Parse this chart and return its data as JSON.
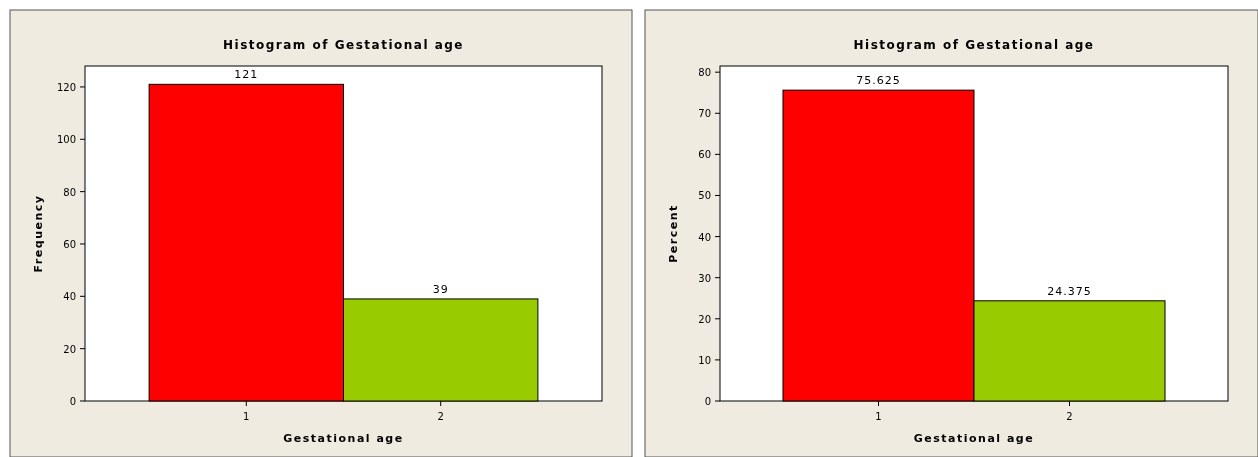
{
  "chart_data": [
    {
      "type": "bar",
      "title": "Histogram of Gestational age",
      "xlabel": "Gestational age",
      "ylabel": "Frequency",
      "categories": [
        "1",
        "2"
      ],
      "values": [
        121,
        39
      ],
      "colors": [
        "#ff0000",
        "#99cc00"
      ],
      "ylim": [
        0,
        128
      ],
      "yticks": [
        0,
        20,
        40,
        60,
        80,
        100,
        120
      ],
      "data_labels": true
    },
    {
      "type": "bar",
      "title": "Histogram of Gestational age",
      "xlabel": "Gestational age",
      "ylabel": "Percent",
      "categories": [
        "1",
        "2"
      ],
      "values": [
        75.625,
        24.375
      ],
      "colors": [
        "#ff0000",
        "#99cc00"
      ],
      "ylim": [
        0,
        81.5
      ],
      "yticks": [
        0,
        10,
        20,
        30,
        40,
        50,
        60,
        70,
        80
      ],
      "data_labels": true
    }
  ]
}
